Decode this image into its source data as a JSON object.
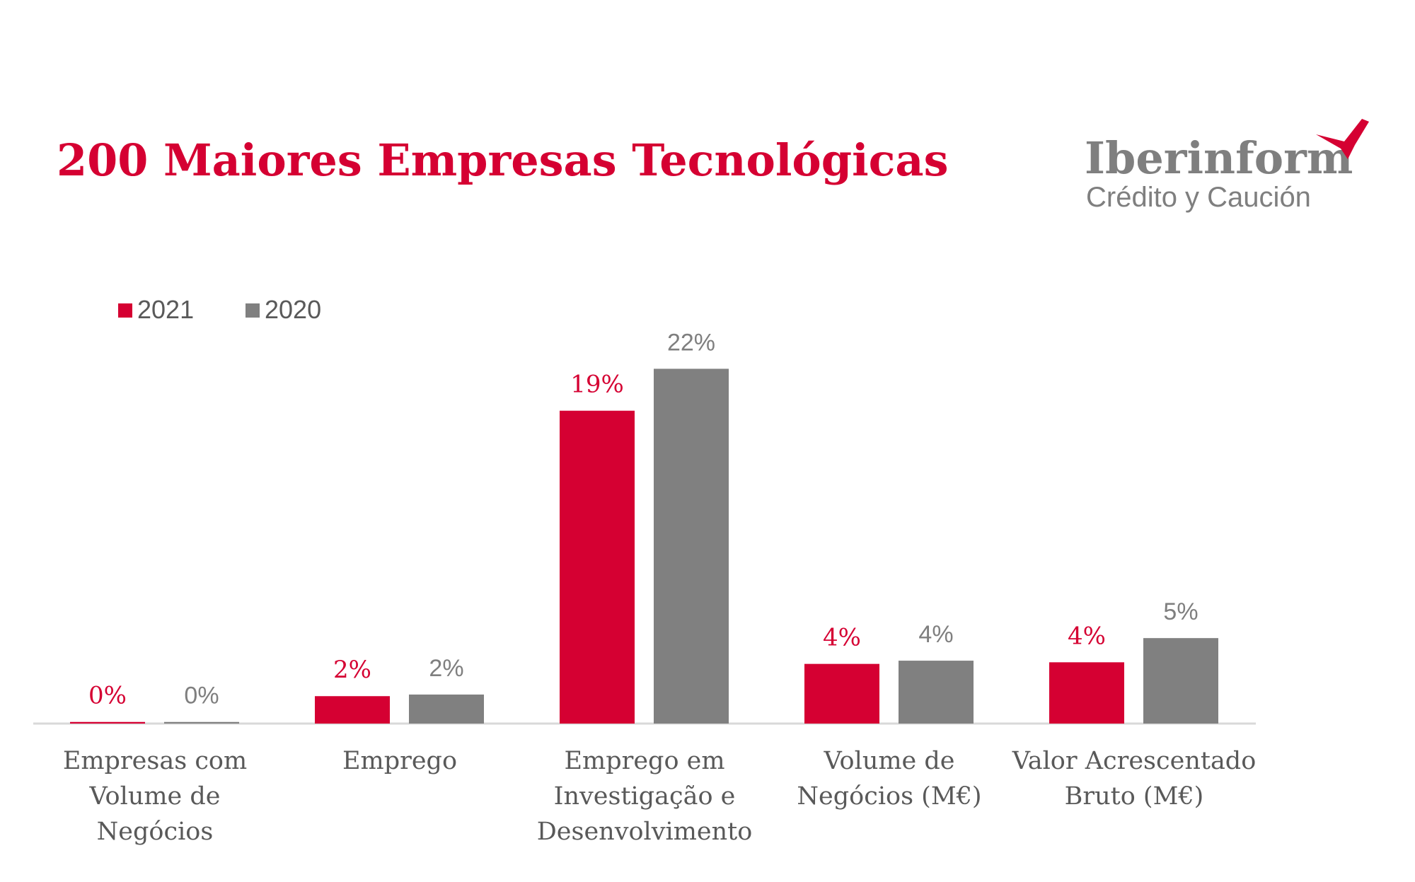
{
  "chart_data": {
    "type": "bar",
    "title": "200 Maiores Empresas Tecnológicas",
    "categories": [
      [
        "Empresas com",
        "Volume de",
        "Negócios"
      ],
      [
        "Emprego"
      ],
      [
        "Emprego em",
        "Investigação e",
        "Desenvolvimento"
      ],
      [
        "Volume de",
        "Negócios (M€)"
      ],
      [
        "Valor Acrescentado",
        "Bruto (M€)"
      ]
    ],
    "series": [
      {
        "name": "2021",
        "color": "#d50032",
        "values": [
          0.1,
          1.7,
          19.4,
          3.7,
          3.8
        ],
        "value_labels": [
          "0%",
          "2%",
          "19%",
          "4%",
          "4%"
        ]
      },
      {
        "name": "2020",
        "color": "#808080",
        "values": [
          0.1,
          1.8,
          22,
          3.9,
          5.3
        ],
        "value_labels": [
          "0%",
          "2%",
          "22%",
          "4%",
          "5%"
        ]
      }
    ],
    "legend": "top-left"
  },
  "logo": {
    "name": "Iberinform",
    "tagline": "Crédito y Caución"
  }
}
